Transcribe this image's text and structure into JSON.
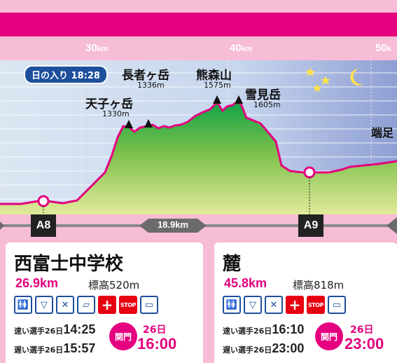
{
  "header": {
    "km_marks": [
      {
        "value": "30",
        "unit": "km"
      },
      {
        "value": "40",
        "unit": "km"
      },
      {
        "value": "50",
        "unit": "k"
      }
    ]
  },
  "profile": {
    "sunset": "日の入り 18:28",
    "right_edge_text": "端足",
    "peaks": [
      {
        "name": "天子ヶ岳",
        "elevation": "1330m"
      },
      {
        "name": "長者ヶ岳",
        "elevation": "1336m"
      },
      {
        "name": "熊森山",
        "elevation": "1575m"
      },
      {
        "name": "雪見岳",
        "elevation": "1605m"
      }
    ]
  },
  "road": {
    "segment_distance": "18.9km"
  },
  "aid_stations": [
    {
      "code": "A8",
      "name": "西富士中学校",
      "distance": "26.9km",
      "elevation": "標高520m",
      "fast_label": "速い選手26日",
      "fast_time": "14:25",
      "slow_label": "遅い選手26日",
      "slow_time": "15:57",
      "closing_label": "関門",
      "closing_day": "26日",
      "closing_time": "16:00",
      "facilities": [
        "toilet-icon",
        "water-icon",
        "food-icon",
        "sleeping-icon",
        "first-aid-icon",
        "stop-icon",
        "bus-icon"
      ]
    },
    {
      "code": "A9",
      "name": "麓",
      "distance": "45.8km",
      "elevation": "標高818m",
      "fast_label": "速い選手26日",
      "fast_time": "16:10",
      "slow_label": "遅い選手26日",
      "slow_time": "23:00",
      "closing_label": "関門",
      "closing_day": "26日",
      "closing_time": "23:00",
      "facilities": [
        "toilet-icon",
        "water-icon",
        "food-icon",
        "first-aid-icon",
        "stop-icon",
        "bus-icon"
      ]
    }
  ],
  "icon_text": {
    "stop": "STOP",
    "first_aid": "+"
  },
  "colors": {
    "accent": "#e4007f",
    "background": "#f7bcd6",
    "badge": "#1d4f9c",
    "green": "#2ca84a"
  }
}
